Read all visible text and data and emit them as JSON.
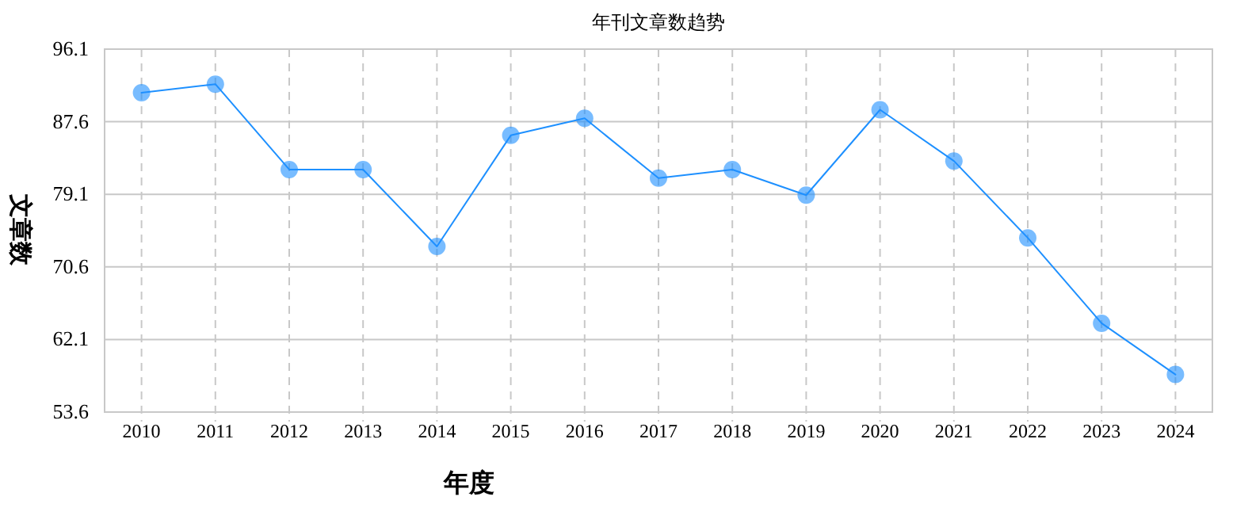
{
  "chart_data": {
    "type": "line",
    "title": "年刊文章数趋势",
    "xlabel": "年度",
    "ylabel": "文章数",
    "categories": [
      "2010",
      "2011",
      "2012",
      "2013",
      "2014",
      "2015",
      "2016",
      "2017",
      "2018",
      "2019",
      "2020",
      "2021",
      "2022",
      "2023",
      "2024"
    ],
    "values": [
      91,
      92,
      82,
      82,
      73,
      86,
      88,
      81,
      82,
      79,
      89,
      83,
      74,
      64,
      58
    ],
    "color": "#1e90ff",
    "marker": "circle",
    "grid": true,
    "ylim": [
      53.6,
      96.1
    ],
    "yticks": [
      53.6,
      62.1,
      70.6,
      79.1,
      87.6,
      96.1
    ]
  }
}
